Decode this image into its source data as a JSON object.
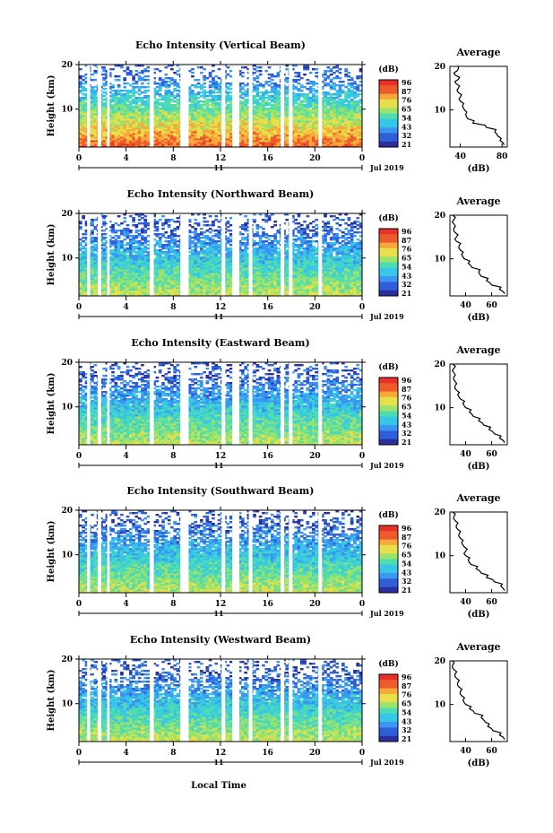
{
  "xlabel": "Local Time",
  "date_label": "Jul 2019",
  "day_label": "11",
  "cbar_unit": "(dB)",
  "cbar_ticks": [
    "96",
    "87",
    "76",
    "65",
    "54",
    "43",
    "32",
    "21"
  ],
  "heights_title": "Height (km)",
  "avg_title": "Average",
  "avg_xlabel": "(dB)",
  "colormap": [
    "#2b2f9e",
    "#2f5fd8",
    "#3a96f0",
    "#36c6e8",
    "#4fdcb0",
    "#9be36a",
    "#e8e04a",
    "#f7a83a",
    "#ef5a2a",
    "#e8302a"
  ],
  "chart_data": [
    {
      "type": "heatmap",
      "title": "Echo Intensity (Vertical Beam)",
      "xlabel": "Local Time",
      "ylabel": "Height (km)",
      "x_ticks": [
        "0",
        "4",
        "8",
        "12",
        "16",
        "20",
        "0"
      ],
      "xlim": [
        0,
        24
      ],
      "y_ticks": [
        "20",
        "10"
      ],
      "ylim": [
        1.5,
        20
      ],
      "zlim": [
        21,
        96
      ],
      "gaps_hours": [
        [
          0.7,
          0.95
        ],
        [
          1.6,
          1.9
        ],
        [
          2.4,
          2.6
        ],
        [
          6.0,
          6.35
        ],
        [
          8.6,
          9.3
        ],
        [
          12.1,
          12.4
        ],
        [
          13.0,
          13.6
        ],
        [
          14.4,
          14.7
        ],
        [
          17.1,
          17.4
        ],
        [
          17.8,
          18.1
        ],
        [
          20.3,
          20.6
        ]
      ],
      "avg_profile": {
        "xlabel": "(dB)",
        "x_ticks": [
          "40",
          "80"
        ],
        "xlim": [
          30,
          85
        ],
        "y_ticks": [
          "20",
          "10"
        ],
        "heights_km": [
          2,
          3,
          4,
          5,
          6,
          7,
          8,
          9,
          10,
          11,
          12,
          13,
          14,
          15,
          16,
          17,
          18,
          19,
          20
        ],
        "values_db": [
          82,
          78,
          76,
          73,
          65,
          52,
          47,
          45,
          44,
          42,
          40,
          40,
          38,
          38,
          36,
          38,
          35,
          37,
          38
        ]
      }
    },
    {
      "type": "heatmap",
      "title": "Echo Intensity (Northward Beam)",
      "xlabel": "Local Time",
      "ylabel": "Height (km)",
      "x_ticks": [
        "0",
        "4",
        "8",
        "12",
        "16",
        "20",
        "0"
      ],
      "xlim": [
        0,
        24
      ],
      "y_ticks": [
        "20",
        "10"
      ],
      "ylim": [
        1.5,
        20
      ],
      "zlim": [
        21,
        96
      ],
      "gaps_hours": [
        [
          0.7,
          0.95
        ],
        [
          1.6,
          1.9
        ],
        [
          2.4,
          2.6
        ],
        [
          6.0,
          6.35
        ],
        [
          8.6,
          9.3
        ],
        [
          12.1,
          12.4
        ],
        [
          13.0,
          13.6
        ],
        [
          14.4,
          14.7
        ],
        [
          17.1,
          17.4
        ],
        [
          17.8,
          18.1
        ],
        [
          20.3,
          20.6
        ]
      ],
      "avg_profile": {
        "xlabel": "(dB)",
        "x_ticks": [
          "40",
          "60"
        ],
        "xlim": [
          28,
          72
        ],
        "y_ticks": [
          "20",
          "10"
        ],
        "heights_km": [
          2,
          3,
          4,
          5,
          6,
          7,
          8,
          9,
          10,
          11,
          12,
          13,
          14,
          15,
          16,
          17,
          18,
          19,
          20
        ],
        "values_db": [
          70,
          66,
          60,
          56,
          52,
          50,
          45,
          42,
          39,
          37,
          36,
          35,
          33,
          33,
          32,
          31,
          31,
          31,
          30
        ]
      }
    },
    {
      "type": "heatmap",
      "title": "Echo Intensity (Eastward Beam)",
      "xlabel": "Local Time",
      "ylabel": "Height (km)",
      "x_ticks": [
        "0",
        "4",
        "8",
        "12",
        "16",
        "20",
        "0"
      ],
      "xlim": [
        0,
        24
      ],
      "y_ticks": [
        "20",
        "10"
      ],
      "ylim": [
        1.5,
        20
      ],
      "zlim": [
        21,
        96
      ],
      "gaps_hours": [
        [
          0.7,
          0.95
        ],
        [
          1.6,
          1.9
        ],
        [
          2.4,
          2.6
        ],
        [
          6.0,
          6.35
        ],
        [
          8.6,
          9.3
        ],
        [
          12.1,
          12.4
        ],
        [
          13.0,
          13.6
        ],
        [
          14.4,
          14.7
        ],
        [
          17.1,
          17.4
        ],
        [
          17.8,
          18.1
        ],
        [
          20.3,
          20.6
        ]
      ],
      "avg_profile": {
        "xlabel": "(dB)",
        "x_ticks": [
          "40",
          "60"
        ],
        "xlim": [
          28,
          72
        ],
        "y_ticks": [
          "20",
          "10"
        ],
        "heights_km": [
          2,
          3,
          4,
          5,
          6,
          7,
          8,
          9,
          10,
          11,
          12,
          13,
          14,
          15,
          16,
          17,
          18,
          19,
          20
        ],
        "values_db": [
          70,
          66,
          62,
          58,
          54,
          50,
          46,
          43,
          40,
          38,
          36,
          34,
          33,
          32,
          32,
          31,
          31,
          31,
          30
        ]
      }
    },
    {
      "type": "heatmap",
      "title": "Echo Intensity (Southward Beam)",
      "xlabel": "Local Time",
      "ylabel": "Height (km)",
      "x_ticks": [
        "0",
        "4",
        "8",
        "12",
        "16",
        "20",
        "0"
      ],
      "xlim": [
        0,
        24
      ],
      "y_ticks": [
        "20",
        "10"
      ],
      "ylim": [
        1.5,
        20
      ],
      "zlim": [
        21,
        96
      ],
      "gaps_hours": [
        [
          0.7,
          0.95
        ],
        [
          1.6,
          1.9
        ],
        [
          2.4,
          2.6
        ],
        [
          6.0,
          6.35
        ],
        [
          8.6,
          9.3
        ],
        [
          12.1,
          12.4
        ],
        [
          13.0,
          13.6
        ],
        [
          14.4,
          14.7
        ],
        [
          17.1,
          17.4
        ],
        [
          17.8,
          18.1
        ],
        [
          20.3,
          20.6
        ]
      ],
      "avg_profile": {
        "xlabel": "(dB)",
        "x_ticks": [
          "40",
          "60"
        ],
        "xlim": [
          28,
          72
        ],
        "y_ticks": [
          "20",
          "10"
        ],
        "heights_km": [
          2,
          3,
          4,
          5,
          6,
          7,
          8,
          9,
          10,
          11,
          12,
          13,
          14,
          15,
          16,
          17,
          18,
          19,
          20
        ],
        "values_db": [
          70,
          67,
          62,
          56,
          52,
          48,
          44,
          42,
          40,
          40,
          39,
          37,
          36,
          35,
          34,
          33,
          32,
          31,
          30
        ]
      }
    },
    {
      "type": "heatmap",
      "title": "Echo Intensity (Westward Beam)",
      "xlabel": "Local Time",
      "ylabel": "Height (km)",
      "x_ticks": [
        "0",
        "4",
        "8",
        "12",
        "16",
        "20",
        "0"
      ],
      "xlim": [
        0,
        24
      ],
      "y_ticks": [
        "20",
        "10"
      ],
      "ylim": [
        1.5,
        20
      ],
      "zlim": [
        21,
        96
      ],
      "gaps_hours": [
        [
          0.7,
          0.95
        ],
        [
          1.6,
          1.9
        ],
        [
          2.4,
          2.6
        ],
        [
          6.0,
          6.35
        ],
        [
          8.6,
          9.3
        ],
        [
          12.1,
          12.4
        ],
        [
          13.0,
          13.6
        ],
        [
          14.4,
          14.7
        ],
        [
          17.1,
          17.4
        ],
        [
          17.8,
          18.1
        ],
        [
          20.3,
          20.6
        ]
      ],
      "avg_profile": {
        "xlabel": "(dB)",
        "x_ticks": [
          "40",
          "60"
        ],
        "xlim": [
          28,
          72
        ],
        "y_ticks": [
          "20",
          "10"
        ],
        "heights_km": [
          2,
          3,
          4,
          5,
          6,
          7,
          8,
          9,
          10,
          11,
          12,
          13,
          14,
          15,
          16,
          17,
          18,
          19,
          20
        ],
        "values_db": [
          70,
          66,
          61,
          57,
          55,
          52,
          47,
          43,
          40,
          38,
          37,
          36,
          35,
          34,
          33,
          32,
          31,
          30,
          30
        ]
      }
    }
  ]
}
